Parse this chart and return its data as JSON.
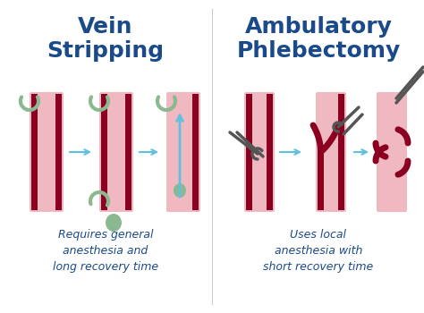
{
  "bg_color": "#ffffff",
  "title_left": "Vein\nStripping",
  "title_right": "Ambulatory\nPhlebectomy",
  "title_color": "#1a4a8a",
  "subtitle_left": "Requires general\nanesthesia and\nlong recovery time",
  "subtitle_right": "Uses local\nanesthesia with\nshort recovery time",
  "subtitle_color": "#1a4a8a",
  "arrow_color": "#60c0e0",
  "vein_outer_color": "#f0b8c0",
  "vein_inner_color": "#8b0020",
  "vein_mid_color": "#c06070",
  "tool_color": "#555555",
  "green_color": "#8ab890",
  "fig_width": 4.74,
  "fig_height": 3.5,
  "dpi": 100
}
